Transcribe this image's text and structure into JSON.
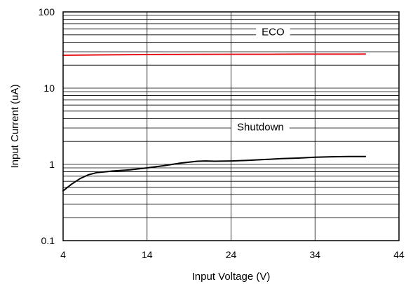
{
  "chart_data": {
    "type": "line",
    "title": "",
    "xlabel": "Input Voltage (V)",
    "ylabel": "Input Current (uA)",
    "xlim": [
      4,
      44
    ],
    "ylim": [
      0.1,
      100
    ],
    "y_scale": "log",
    "grid": true,
    "x_ticks": [
      "4",
      "14",
      "24",
      "34",
      "44"
    ],
    "y_ticks": [
      "0.1",
      "1",
      "10",
      "100"
    ],
    "series": [
      {
        "name": "ECO",
        "color": "#e8141b",
        "x": [
          4,
          8,
          12,
          16,
          20,
          24,
          28,
          32,
          36,
          40
        ],
        "y": [
          27,
          27.3,
          27.5,
          27.6,
          27.7,
          27.8,
          27.8,
          27.9,
          27.9,
          28
        ]
      },
      {
        "name": "Shutdown",
        "color": "#000000",
        "x": [
          4,
          5,
          6,
          7,
          8,
          9,
          10,
          12,
          14,
          16,
          18,
          20,
          21,
          22,
          24,
          26,
          28,
          30,
          32,
          34,
          36,
          38,
          40
        ],
        "y": [
          0.45,
          0.55,
          0.65,
          0.73,
          0.78,
          0.8,
          0.82,
          0.85,
          0.9,
          0.96,
          1.04,
          1.1,
          1.11,
          1.1,
          1.11,
          1.13,
          1.16,
          1.19,
          1.21,
          1.24,
          1.26,
          1.27,
          1.27
        ]
      }
    ]
  }
}
